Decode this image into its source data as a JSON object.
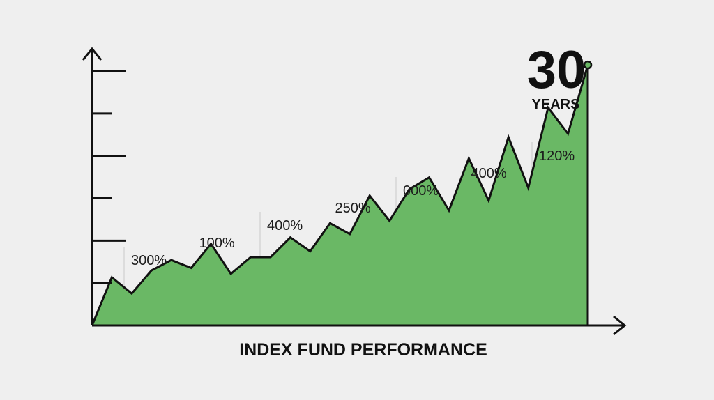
{
  "chart_data": {
    "type": "area",
    "title": "INDEX FUND PERFORMANCE",
    "period": {
      "value": "30",
      "unit": "YEARS"
    },
    "colors": {
      "fill": "#6ab865",
      "line": "#111111",
      "background": "#efefef",
      "guide": "#c8c8c8"
    },
    "series": [
      {
        "values": [
          0.0,
          0.98,
          0.65,
          1.12,
          1.33,
          1.17,
          1.66,
          1.05,
          1.39,
          1.39,
          1.79,
          1.51,
          2.08,
          1.86,
          2.64,
          2.13,
          2.77,
          3.01,
          2.34,
          3.4,
          2.54,
          3.83,
          2.8,
          4.43,
          3.9,
          5.3
        ]
      }
    ],
    "ylim": [
      0,
      5.6
    ],
    "y_ticks": 6,
    "grid": false,
    "annotations": [
      {
        "label": "300%",
        "at": 0.0
      },
      {
        "label": "100%",
        "at": 1.0
      },
      {
        "label": "400%",
        "at": 2.0
      },
      {
        "label": "250%",
        "at": 3.0
      },
      {
        "label": "000%",
        "at": 4.0
      },
      {
        "label": "400%",
        "at": 5.0
      },
      {
        "label": "120%",
        "at": 6.0
      }
    ]
  }
}
